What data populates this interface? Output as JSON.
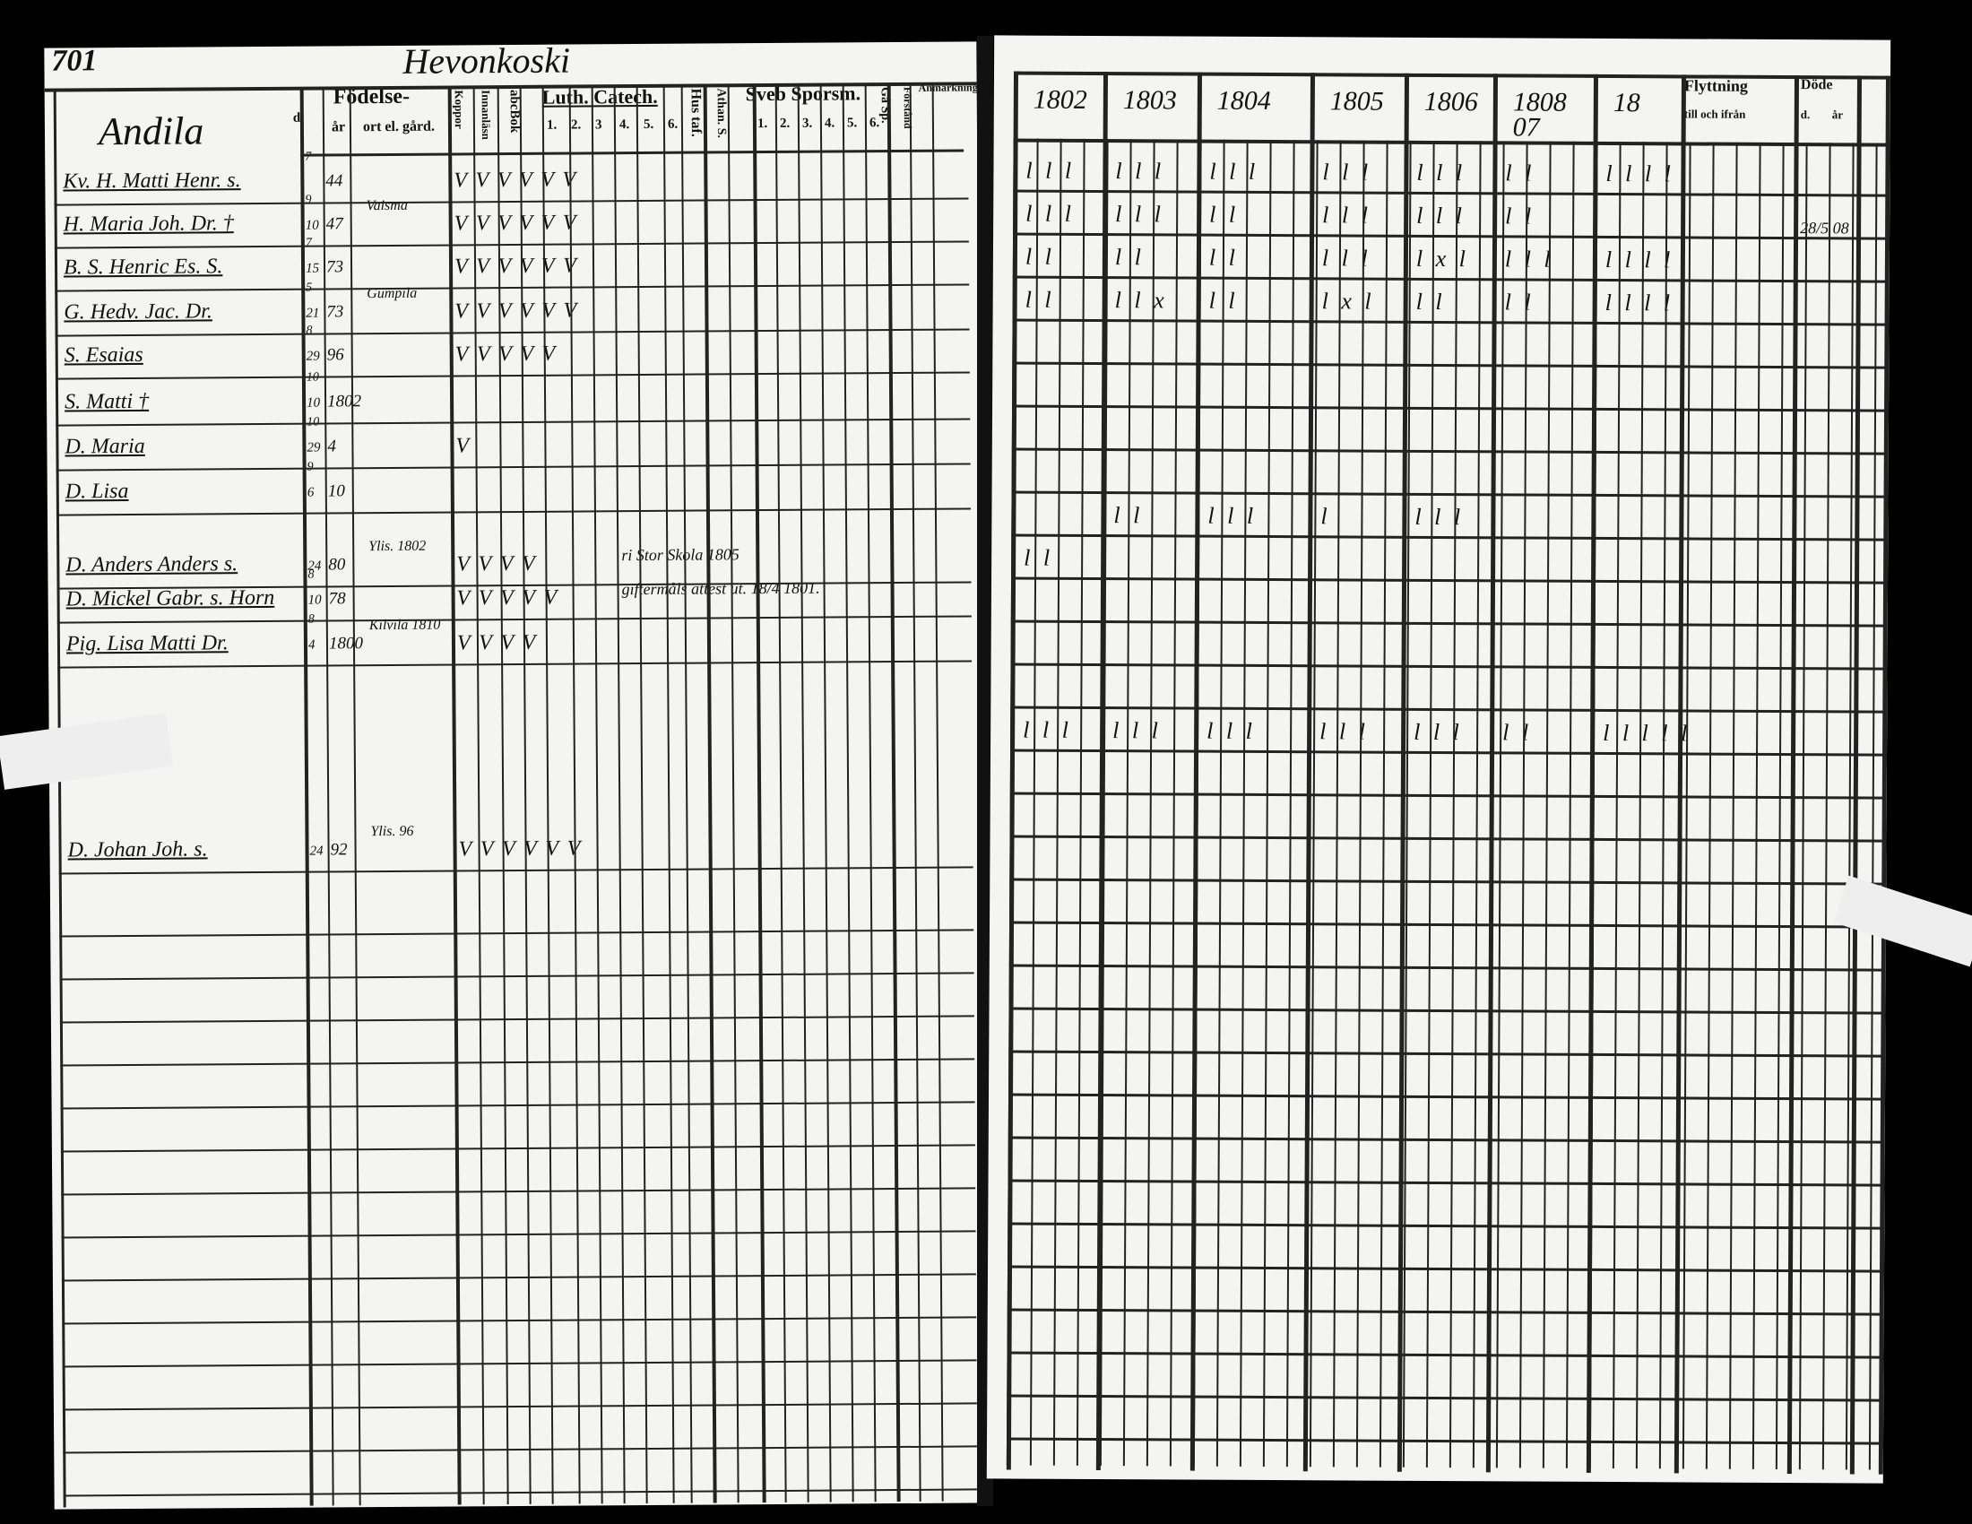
{
  "left_page": {
    "page_number": "701",
    "village": "Hevonkoski",
    "farm": "Andila",
    "headers": {
      "fodelse": "Födelse-",
      "day": "d.",
      "year": "år",
      "place": "ort el. gård.",
      "vaccination": "Koppor",
      "innanlasning": "Innanläsn",
      "abc_bok": "abcBok",
      "luth_catech": "Luth. Catech.",
      "catech_nums": [
        "1.",
        "2.",
        "3",
        "4.",
        "5.",
        "6."
      ],
      "hus_taf": "Hus taf.",
      "athanasius": "Athan. S.",
      "sveb_sporsm": "Sveb Sporsm.",
      "sveb_nums": [
        "1.",
        "2.",
        "3.",
        "4.",
        "5.",
        "6."
      ],
      "ga_sp": "Gå Sp.",
      "forstand": "Förstånd",
      "anmarkningar": "Anmärkningar."
    },
    "rows": [
      {
        "name": "Kv. H. Matti Henr. s.",
        "day": "",
        "month": "7",
        "year": "44",
        "place": "",
        "checks": "V V V V V V",
        "note": ""
      },
      {
        "name": "H. Maria Joh. Dr. †",
        "day": "10",
        "month": "9",
        "year": "47",
        "place": "Vaisma",
        "checks": "V V V V V V",
        "note": ""
      },
      {
        "name": "B. S. Henric Es. S.",
        "day": "15",
        "month": "7",
        "year": "73",
        "place": "",
        "checks": "V V V V V V",
        "note": ""
      },
      {
        "name": "G. Hedv. Jac. Dr.",
        "day": "21",
        "month": "5",
        "year": "73",
        "place": "Gumpila",
        "checks": "V V V V V V",
        "note": ""
      },
      {
        "name": "S. Esaias",
        "day": "29",
        "month": "8",
        "year": "96",
        "place": "",
        "checks": "V V V V V",
        "note": ""
      },
      {
        "name": "S. Matti †",
        "day": "10",
        "month": "10",
        "year": "1802",
        "place": "",
        "checks": "",
        "note": ""
      },
      {
        "name": "D. Maria",
        "day": "29",
        "month": "10",
        "year": "4",
        "place": "",
        "checks": "V",
        "note": ""
      },
      {
        "name": "D. Lisa",
        "day": "6",
        "month": "9",
        "year": "10",
        "place": "",
        "checks": "",
        "note": ""
      },
      {
        "name": "D. Anders Anders s.",
        "day": "24",
        "month": "",
        "year": "80",
        "place": "Ylis. 1802",
        "checks": "V V V V",
        "note": "ri Stor Skola 1805"
      },
      {
        "name": "D. Mickel Gabr. s. Horn",
        "day": "10",
        "month": "8",
        "year": "78",
        "place": "",
        "checks": "V V V V V",
        "note": "giftermåls attest ut. 18/4 1801."
      },
      {
        "name": "Pig. Lisa Matti Dr.",
        "day": "4",
        "month": "8",
        "year": "1800",
        "place": "Kilvilä 1810",
        "checks": "V V V V",
        "note": ""
      },
      {
        "name": "D. Johan Joh. s.",
        "day": "24",
        "month": "",
        "year": "92",
        "place": "Ylis. 96",
        "checks": "V V V V V V",
        "note": ""
      }
    ]
  },
  "right_page": {
    "year_headers": [
      "1802",
      "1803",
      "1804",
      "1805",
      "1806",
      "1808 07",
      "18"
    ],
    "moving_header": "Flyttning",
    "moving_sub": "till och ifrån",
    "death_header": "Döde",
    "death_sub": [
      "d.",
      "år"
    ],
    "death_entry": "28/5 08",
    "rows": [
      {
        "marks": [
          "l l l",
          "l l l",
          "l l l",
          "l l l",
          "l l l",
          "l l",
          "l l l l"
        ]
      },
      {
        "marks": [
          "l l l",
          "l l l",
          "l l",
          "l l l",
          "l l l",
          "l l",
          ""
        ]
      },
      {
        "marks": [
          "l l",
          "l l",
          "l l",
          "l l l",
          "l x l",
          "l l l",
          "l l l l"
        ]
      },
      {
        "marks": [
          "l l",
          "l l x",
          "l l",
          "l x l",
          "l l",
          "l l",
          "l l l l"
        ]
      },
      {
        "marks": []
      },
      {
        "marks": []
      },
      {
        "marks": []
      },
      {
        "marks": []
      },
      {
        "marks": [
          "",
          "l l",
          "l l l",
          "l",
          "l l l",
          "",
          ""
        ]
      },
      {
        "marks": [
          "l l",
          "",
          "",
          "",
          "",
          "",
          ""
        ]
      },
      {
        "marks": []
      },
      {
        "marks": [
          "l l l",
          "l l l",
          "l l l",
          "l l l",
          "l l l",
          "l l",
          "l l l l l"
        ]
      }
    ]
  }
}
